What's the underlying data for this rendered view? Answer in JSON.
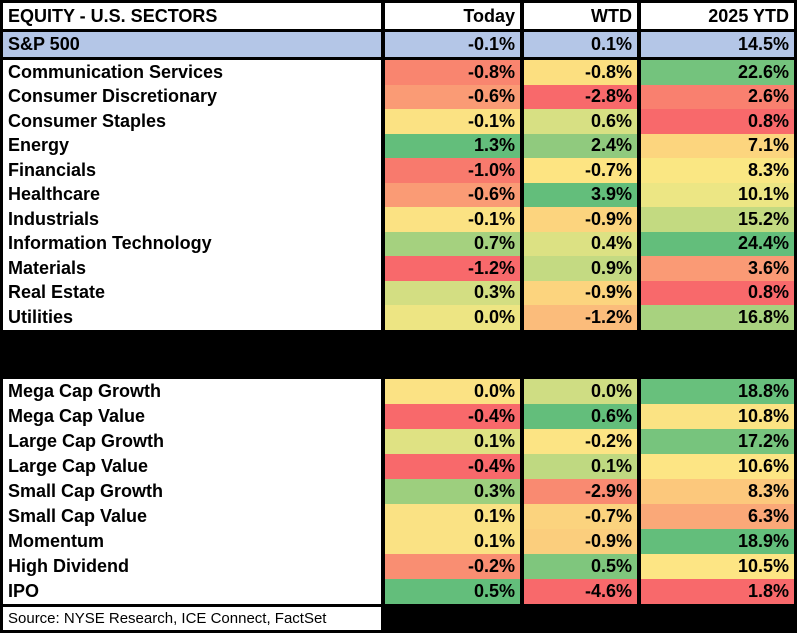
{
  "ui": {
    "header": {
      "title": "EQUITY - U.S. SECTORS",
      "columns": [
        "Today",
        "WTD",
        "2025 YTD"
      ]
    },
    "benchmark": {
      "label": "S&P 500",
      "bg": "#B4C6E7",
      "today": "-0.1%",
      "wtd": "0.1%",
      "ytd": "14.5%"
    },
    "sectors": [
      {
        "label": "Communication Services",
        "today": {
          "v": "-0.8%",
          "c": "#F9856F"
        },
        "wtd": {
          "v": "-0.8%",
          "c": "#FCDF80"
        },
        "ytd": {
          "v": "22.6%",
          "c": "#74C37D"
        }
      },
      {
        "label": "Consumer Discretionary",
        "today": {
          "v": "-0.6%",
          "c": "#FA9B75"
        },
        "wtd": {
          "v": "-2.8%",
          "c": "#F8696B"
        },
        "ytd": {
          "v": "2.6%",
          "c": "#F9806F"
        }
      },
      {
        "label": "Consumer Staples",
        "today": {
          "v": "-0.1%",
          "c": "#FBE283"
        },
        "wtd": {
          "v": "0.6%",
          "c": "#D7E083"
        },
        "ytd": {
          "v": "0.8%",
          "c": "#F8696B"
        }
      },
      {
        "label": "Energy",
        "today": {
          "v": "1.3%",
          "c": "#63BE7B"
        },
        "wtd": {
          "v": "2.4%",
          "c": "#90CA7E"
        },
        "ytd": {
          "v": "7.1%",
          "c": "#FCD57E"
        }
      },
      {
        "label": "Financials",
        "today": {
          "v": "-1.0%",
          "c": "#F87A6D"
        },
        "wtd": {
          "v": "-0.7%",
          "c": "#FDE482"
        },
        "ytd": {
          "v": "8.3%",
          "c": "#FAE783"
        }
      },
      {
        "label": "Healthcare",
        "today": {
          "v": "-0.6%",
          "c": "#FA9B75"
        },
        "wtd": {
          "v": "3.9%",
          "c": "#63BE7B"
        },
        "ytd": {
          "v": "10.1%",
          "c": "#ECE684"
        }
      },
      {
        "label": "Industrials",
        "today": {
          "v": "-0.1%",
          "c": "#FBE283"
        },
        "wtd": {
          "v": "-0.9%",
          "c": "#FCD47E"
        },
        "ytd": {
          "v": "15.2%",
          "c": "#C3DA81"
        }
      },
      {
        "label": "Information Technology",
        "today": {
          "v": "0.7%",
          "c": "#A5D17F"
        },
        "wtd": {
          "v": "0.4%",
          "c": "#DCE183"
        },
        "ytd": {
          "v": "24.4%",
          "c": "#63BE7B"
        }
      },
      {
        "label": "Materials",
        "today": {
          "v": "-1.2%",
          "c": "#F8696B"
        },
        "wtd": {
          "v": "0.9%",
          "c": "#C4DA82"
        },
        "ytd": {
          "v": "3.6%",
          "c": "#FA9A75"
        }
      },
      {
        "label": "Real Estate",
        "today": {
          "v": "0.3%",
          "c": "#D3DE82"
        },
        "wtd": {
          "v": "-0.9%",
          "c": "#FCD47E"
        },
        "ytd": {
          "v": "0.8%",
          "c": "#F8696B"
        }
      },
      {
        "label": "Utilities",
        "today": {
          "v": "0.0%",
          "c": "#EDE583"
        },
        "wtd": {
          "v": "-1.2%",
          "c": "#FBBC7B"
        },
        "ytd": {
          "v": "16.8%",
          "c": "#A8D27F"
        }
      }
    ],
    "styles": [
      {
        "label": "Mega Cap Growth",
        "today": {
          "v": "0.0%",
          "c": "#FBE284"
        },
        "wtd": {
          "v": "0.0%",
          "c": "#CFDD83"
        },
        "ytd": {
          "v": "18.8%",
          "c": "#68C07C"
        }
      },
      {
        "label": "Mega Cap Value",
        "today": {
          "v": "-0.4%",
          "c": "#F8696B"
        },
        "wtd": {
          "v": "0.6%",
          "c": "#63BE7B"
        },
        "ytd": {
          "v": "10.8%",
          "c": "#FBE383"
        }
      },
      {
        "label": "Large Cap Growth",
        "today": {
          "v": "0.1%",
          "c": "#DFE283"
        },
        "wtd": {
          "v": "-0.2%",
          "c": "#FCE484"
        },
        "ytd": {
          "v": "17.2%",
          "c": "#77C47D"
        }
      },
      {
        "label": "Large Cap Value",
        "today": {
          "v": "-0.4%",
          "c": "#F8696B"
        },
        "wtd": {
          "v": "0.1%",
          "c": "#BFD981"
        },
        "ytd": {
          "v": "10.6%",
          "c": "#FDE584"
        }
      },
      {
        "label": "Small Cap Growth",
        "today": {
          "v": "0.3%",
          "c": "#9DCF7E"
        },
        "wtd": {
          "v": "-2.9%",
          "c": "#F98A71"
        },
        "ytd": {
          "v": "8.3%",
          "c": "#FCC87C"
        }
      },
      {
        "label": "Small Cap Value",
        "today": {
          "v": "0.1%",
          "c": "#FAE284"
        },
        "wtd": {
          "v": "-0.7%",
          "c": "#FBD37E"
        },
        "ytd": {
          "v": "6.3%",
          "c": "#FAA878"
        }
      },
      {
        "label": "Momentum",
        "today": {
          "v": "0.1%",
          "c": "#FAE284"
        },
        "wtd": {
          "v": "-0.9%",
          "c": "#FBCE7D"
        },
        "ytd": {
          "v": "18.9%",
          "c": "#63BE7B"
        }
      },
      {
        "label": "High Dividend",
        "today": {
          "v": "-0.2%",
          "c": "#F98E72"
        },
        "wtd": {
          "v": "0.5%",
          "c": "#7FC67D"
        },
        "ytd": {
          "v": "10.5%",
          "c": "#FDE584"
        }
      },
      {
        "label": "IPO",
        "today": {
          "v": "0.5%",
          "c": "#63BE7B"
        },
        "wtd": {
          "v": "-4.6%",
          "c": "#F8696B"
        },
        "ytd": {
          "v": "1.8%",
          "c": "#F8696B"
        }
      }
    ],
    "source": "Source: NYSE Research, ICE Connect, FactSet"
  },
  "chart_data": [
    {
      "type": "heatmap",
      "title": "EQUITY - U.S. SECTORS",
      "columns": [
        "Today",
        "WTD",
        "2025 YTD"
      ],
      "benchmark": {
        "label": "S&P 500",
        "values": [
          -0.1,
          0.1,
          14.5
        ]
      },
      "categories": [
        "Communication Services",
        "Consumer Discretionary",
        "Consumer Staples",
        "Energy",
        "Financials",
        "Healthcare",
        "Industrials",
        "Information Technology",
        "Materials",
        "Real Estate",
        "Utilities"
      ],
      "series": [
        {
          "name": "Today",
          "values": [
            -0.8,
            -0.6,
            -0.1,
            1.3,
            -1.0,
            -0.6,
            -0.1,
            0.7,
            -1.2,
            0.3,
            0.0
          ]
        },
        {
          "name": "WTD",
          "values": [
            -0.8,
            -2.8,
            0.6,
            2.4,
            -0.7,
            3.9,
            -0.9,
            0.4,
            0.9,
            -0.9,
            -1.2
          ]
        },
        {
          "name": "2025 YTD",
          "values": [
            22.6,
            2.6,
            0.8,
            7.1,
            8.3,
            10.1,
            15.2,
            24.4,
            3.6,
            0.8,
            16.8
          ]
        }
      ],
      "units": "percent",
      "colorscale": {
        "min": "#F8696B",
        "mid": "#FFEB84",
        "max": "#63BE7B"
      },
      "benchmark_row_color": "#B4C6E7"
    },
    {
      "type": "heatmap",
      "title": "",
      "columns": [
        "Today",
        "WTD",
        "2025 YTD"
      ],
      "categories": [
        "Mega Cap Growth",
        "Mega Cap Value",
        "Large Cap Growth",
        "Large Cap Value",
        "Small Cap Growth",
        "Small Cap Value",
        "Momentum",
        "High Dividend",
        "IPO"
      ],
      "series": [
        {
          "name": "Today",
          "values": [
            0.0,
            -0.4,
            0.1,
            -0.4,
            0.3,
            0.1,
            0.1,
            -0.2,
            0.5
          ]
        },
        {
          "name": "WTD",
          "values": [
            0.0,
            0.6,
            -0.2,
            0.1,
            -2.9,
            -0.7,
            -0.9,
            0.5,
            -4.6
          ]
        },
        {
          "name": "2025 YTD",
          "values": [
            18.8,
            10.8,
            17.2,
            10.6,
            8.3,
            6.3,
            18.9,
            10.5,
            1.8
          ]
        }
      ],
      "units": "percent",
      "colorscale": {
        "min": "#F8696B",
        "mid": "#FFEB84",
        "max": "#63BE7B"
      }
    }
  ]
}
